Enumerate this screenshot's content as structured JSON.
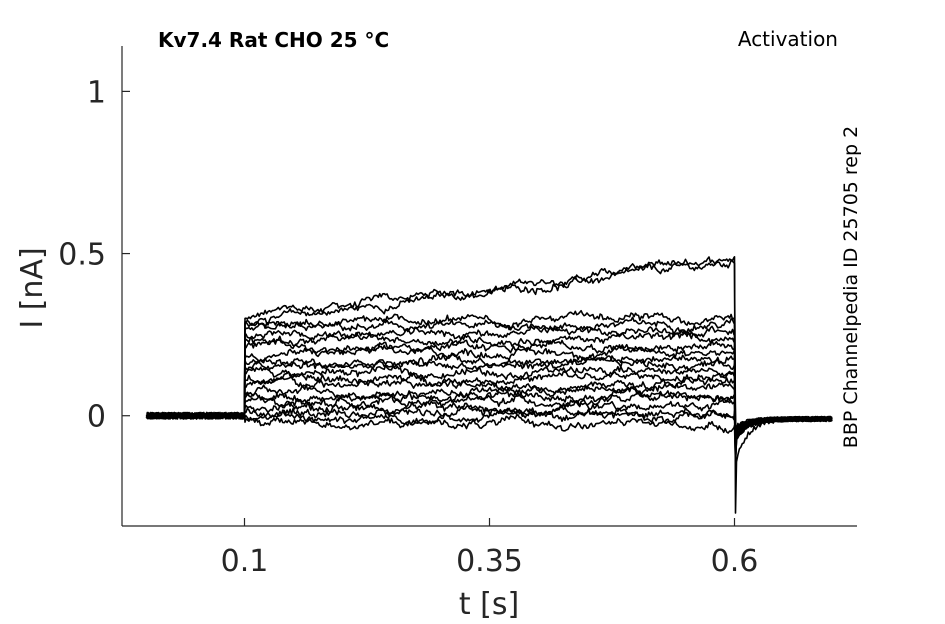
{
  "chart_data": {
    "type": "line",
    "title_left": "Kv7.4  Rat  CHO  25 °C",
    "title_right": "Activation",
    "side_label": "BBP Channelpedia ID 25705 rep 2",
    "xlabel": "t [s]",
    "ylabel": "I [nA]",
    "xlim": [
      -0.025,
      0.725
    ],
    "ylim": [
      -0.34,
      1.14
    ],
    "xticks": [
      0.1,
      0.35,
      0.6
    ],
    "xtick_labels": [
      "0.1",
      "0.35",
      "0.6"
    ],
    "yticks": [
      0,
      0.5,
      1
    ],
    "ytick_labels": [
      "0",
      "0.5",
      "1"
    ],
    "grid": false,
    "trace_color": "#000000",
    "axis_color": "#262626",
    "step_start_s": 0.1,
    "step_end_s": 0.6,
    "record_start_s": 0.0,
    "record_end_s": 0.7,
    "series": [
      {
        "start": 0.3,
        "end": 0.49,
        "sustained": 0.29
      },
      {
        "start": 0.29,
        "end": 0.47,
        "sustained": 0.27
      },
      {
        "start": 0.285,
        "end": 0.3,
        "sustained": 0.23
      },
      {
        "start": 0.265,
        "end": 0.285,
        "sustained": 0.18
      },
      {
        "start": 0.245,
        "end": 0.265,
        "sustained": 0.14
      },
      {
        "start": 0.23,
        "end": 0.24,
        "sustained": 0.11
      },
      {
        "start": 0.21,
        "end": 0.215,
        "sustained": 0.09
      },
      {
        "start": 0.19,
        "end": 0.2,
        "sustained": 0.07
      },
      {
        "start": 0.17,
        "end": 0.18,
        "sustained": 0.05
      },
      {
        "start": 0.15,
        "end": 0.16,
        "sustained": 0.04
      },
      {
        "start": 0.13,
        "end": 0.14,
        "sustained": 0.03
      },
      {
        "start": 0.11,
        "end": 0.12,
        "sustained": 0.02
      },
      {
        "start": 0.09,
        "end": 0.1,
        "sustained": 0.015
      },
      {
        "start": 0.07,
        "end": 0.085,
        "sustained": 0.01
      },
      {
        "start": 0.055,
        "end": 0.065,
        "sustained": 0.005
      },
      {
        "start": 0.04,
        "end": 0.05,
        "sustained": 0.0
      },
      {
        "start": 0.025,
        "end": 0.03,
        "sustained": -0.01
      },
      {
        "start": 0.01,
        "end": 0.015,
        "sustained": -0.015
      },
      {
        "start": -0.005,
        "end": 0.0,
        "sustained": -0.02
      },
      {
        "start": -0.02,
        "end": -0.03,
        "sustained": -0.03
      }
    ],
    "tail_min": -0.3
  }
}
